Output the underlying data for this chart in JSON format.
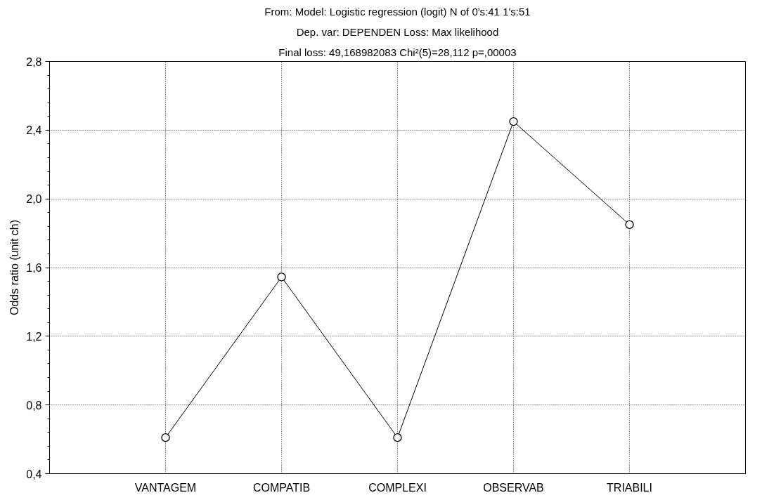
{
  "chart_data": {
    "type": "line",
    "title": "From: Model: Logistic regression (logit) N of 0's:41 1's:51",
    "subtitle": "Dep. var: DEPENDEN Loss: Max likelihood",
    "annotations": [
      "Final loss: 49,168982083 Chi²(5)=28,112 p=,00003"
    ],
    "ylabel": "Odds ratio (unit ch)",
    "categories": [
      "VANTAGEM",
      "COMPATIB",
      "COMPLEXI",
      "OBSERVAB",
      "TRIABILI"
    ],
    "series": [
      {
        "color": "#000000",
        "values": [
          0.61,
          1.545,
          0.61,
          2.45,
          1.85
        ]
      }
    ],
    "ylim": [
      0.4,
      2.8
    ],
    "yticks": [
      {
        "value": 0.4,
        "label": "0,4"
      },
      {
        "value": 0.8,
        "label": "0,8"
      },
      {
        "value": 1.2,
        "label": "1,2"
      },
      {
        "value": 1.6,
        "label": "1,6"
      },
      {
        "value": 2.0,
        "label": "2,0"
      },
      {
        "value": 2.4,
        "label": "2,4"
      },
      {
        "value": 2.8,
        "label": "2,8"
      }
    ],
    "grid": true,
    "marker": "circle",
    "line_style": "solid"
  }
}
